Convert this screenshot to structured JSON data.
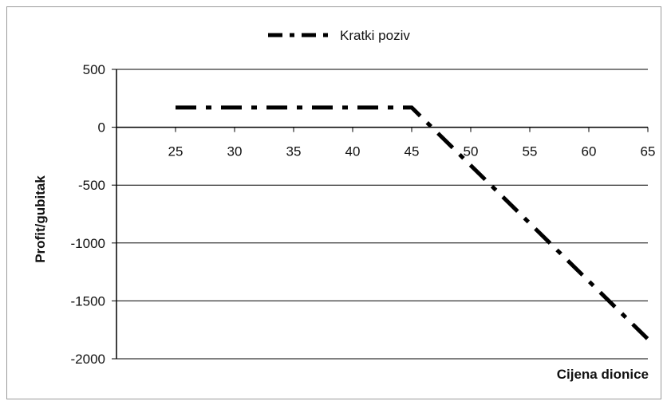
{
  "chart_data": {
    "type": "line",
    "title": "",
    "xlabel": "Cijena dionice",
    "ylabel": "Profit/gubitak",
    "xlim": [
      20,
      65
    ],
    "ylim": [
      -2000,
      500
    ],
    "xticks": [
      25,
      30,
      35,
      40,
      45,
      50,
      55,
      60,
      65
    ],
    "yticks": [
      500,
      0,
      -500,
      -1000,
      -1500,
      -2000
    ],
    "grid": "horizontal",
    "legend_position": "top-center",
    "series": [
      {
        "name": "Kratki poziv",
        "line_style": "dash-dot",
        "color": "#000000",
        "points": [
          {
            "x": 25,
            "y": 170
          },
          {
            "x": 45,
            "y": 170
          },
          {
            "x": 65,
            "y": -1830
          }
        ]
      }
    ]
  }
}
